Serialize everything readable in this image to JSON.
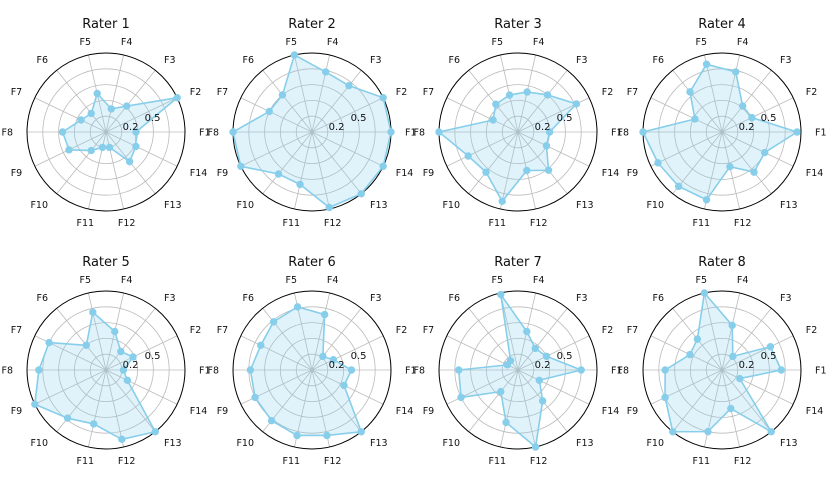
{
  "colors": {
    "series": "#87CEEB",
    "fill": "#87CEEB",
    "grid": "#bbbbbb",
    "frame": "#000000"
  },
  "chart_data": [
    {
      "type": "radar",
      "title": "Rater 1",
      "categories": [
        "F1",
        "F2",
        "F3",
        "F4",
        "F5",
        "F6",
        "F7",
        "F8",
        "F9",
        "F10",
        "F11",
        "F12",
        "F13",
        "F14"
      ],
      "values": [
        0.38,
        1.0,
        0.42,
        0.3,
        0.5,
        0.3,
        0.35,
        0.55,
        0.52,
        0.3,
        0.2,
        0.2,
        0.48,
        0.42
      ],
      "rlim": [
        0,
        1
      ],
      "rticks": [
        0.2,
        0.5
      ],
      "grid": true
    },
    {
      "type": "radar",
      "title": "Rater 2",
      "categories": [
        "F1",
        "F2",
        "F3",
        "F4",
        "F5",
        "F6",
        "F7",
        "F8",
        "F9",
        "F10",
        "F11",
        "F12",
        "F13",
        "F14"
      ],
      "values": [
        1.0,
        1.0,
        0.75,
        0.78,
        1.0,
        0.6,
        0.6,
        1.0,
        1.0,
        0.68,
        0.68,
        0.98,
        1.0,
        1.0
      ],
      "rlim": [
        0,
        1
      ],
      "rticks": [
        0.2,
        0.5
      ],
      "grid": true
    },
    {
      "type": "radar",
      "title": "Rater 3",
      "categories": [
        "F1",
        "F2",
        "F3",
        "F4",
        "F5",
        "F6",
        "F7",
        "F8",
        "F9",
        "F10",
        "F11",
        "F12",
        "F13",
        "F14"
      ],
      "values": [
        0.4,
        0.82,
        0.6,
        0.52,
        0.48,
        0.45,
        0.35,
        1.0,
        0.7,
        0.65,
        0.9,
        0.5,
        0.62,
        0.4
      ],
      "rlim": [
        0,
        1
      ],
      "rticks": [
        0.2,
        0.5
      ],
      "grid": true
    },
    {
      "type": "radar",
      "title": "Rater 4",
      "categories": [
        "F1",
        "F2",
        "F3",
        "F4",
        "F5",
        "F6",
        "F7",
        "F8",
        "F9",
        "F10",
        "F11",
        "F12",
        "F13",
        "F14"
      ],
      "values": [
        0.95,
        0.42,
        0.42,
        0.78,
        0.88,
        0.65,
        0.38,
        1.0,
        0.9,
        0.88,
        0.88,
        0.45,
        0.65,
        0.6
      ],
      "rlim": [
        0,
        1
      ],
      "rticks": [
        0.2,
        0.5
      ],
      "grid": true
    },
    {
      "type": "radar",
      "title": "Rater 5",
      "categories": [
        "F1",
        "F2",
        "F3",
        "F4",
        "F5",
        "F6",
        "F7",
        "F8",
        "F9",
        "F10",
        "F11",
        "F12",
        "F13",
        "F14"
      ],
      "values": [
        0.22,
        0.38,
        0.3,
        0.5,
        0.75,
        0.4,
        0.8,
        0.85,
        1.0,
        0.78,
        0.7,
        0.9,
        1.0,
        0.3
      ],
      "rlim": [
        0,
        1
      ],
      "rticks": [
        0.2,
        0.5
      ],
      "grid": true
    },
    {
      "type": "radar",
      "title": "Rater 6",
      "categories": [
        "F1",
        "F2",
        "F3",
        "F4",
        "F5",
        "F6",
        "F7",
        "F8",
        "F9",
        "F10",
        "F11",
        "F12",
        "F13",
        "F14"
      ],
      "values": [
        0.5,
        0.3,
        0.22,
        0.72,
        0.82,
        0.78,
        0.72,
        0.78,
        0.8,
        0.82,
        0.85,
        0.85,
        1.0,
        0.45
      ],
      "rlim": [
        0,
        1
      ],
      "rticks": [
        0.2,
        0.5
      ],
      "grid": true
    },
    {
      "type": "radar",
      "title": "Rater 7",
      "categories": [
        "F1",
        "F2",
        "F3",
        "F4",
        "F5",
        "F6",
        "F7",
        "F8",
        "F9",
        "F10",
        "F11",
        "F12",
        "F13",
        "F14"
      ],
      "values": [
        0.8,
        0.4,
        0.35,
        0.5,
        0.98,
        0.15,
        0.15,
        0.75,
        0.8,
        0.35,
        0.68,
        1.0,
        0.5,
        0.3
      ],
      "rlim": [
        0,
        1
      ],
      "rticks": [
        0.2,
        0.5
      ],
      "grid": true
    },
    {
      "type": "radar",
      "title": "Rater 8",
      "categories": [
        "F1",
        "F2",
        "F3",
        "F4",
        "F5",
        "F6",
        "F7",
        "F8",
        "F9",
        "F10",
        "F11",
        "F12",
        "F13",
        "F14"
      ],
      "values": [
        0.75,
        0.68,
        0.22,
        0.58,
        1.0,
        0.5,
        0.45,
        0.72,
        0.8,
        1.0,
        0.8,
        0.5,
        1.0,
        0.25
      ],
      "rlim": [
        0,
        1
      ],
      "rticks": [
        0.2,
        0.5
      ],
      "grid": true
    }
  ]
}
